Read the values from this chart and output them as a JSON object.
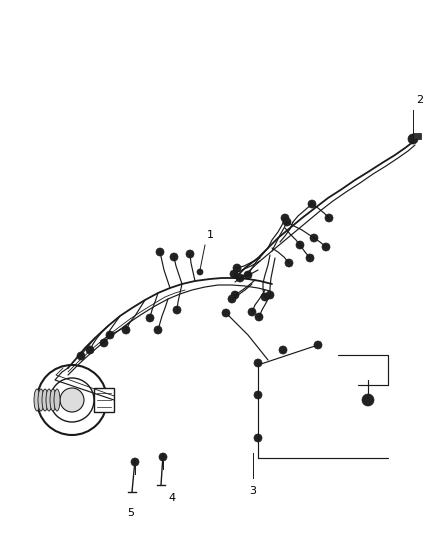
{
  "bg_color": "#ffffff",
  "line_color": "#1a1a1a",
  "label_color": "#000000",
  "figsize": [
    4.38,
    5.33
  ],
  "dpi": 100
}
